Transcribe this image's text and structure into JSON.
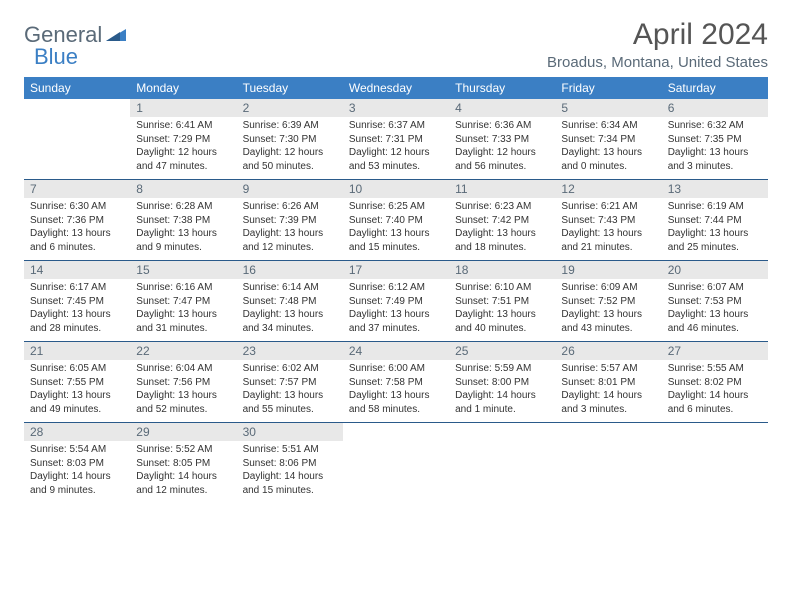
{
  "brand": {
    "part1": "General",
    "part2": "Blue"
  },
  "title": "April 2024",
  "location": "Broadus, Montana, United States",
  "colors": {
    "header_bg": "#3b7fc4",
    "header_text": "#ffffff",
    "daynum_bg": "#e8e8e8",
    "daynum_text": "#5a6a78",
    "row_divider": "#2a5a8a",
    "body_text": "#333333",
    "logo_gray": "#5a6a78",
    "logo_blue": "#3b7fc4"
  },
  "weekdays": [
    "Sunday",
    "Monday",
    "Tuesday",
    "Wednesday",
    "Thursday",
    "Friday",
    "Saturday"
  ],
  "cells": [
    [
      null,
      {
        "n": "1",
        "sr": "Sunrise: 6:41 AM",
        "ss": "Sunset: 7:29 PM",
        "d1": "Daylight: 12 hours",
        "d2": "and 47 minutes."
      },
      {
        "n": "2",
        "sr": "Sunrise: 6:39 AM",
        "ss": "Sunset: 7:30 PM",
        "d1": "Daylight: 12 hours",
        "d2": "and 50 minutes."
      },
      {
        "n": "3",
        "sr": "Sunrise: 6:37 AM",
        "ss": "Sunset: 7:31 PM",
        "d1": "Daylight: 12 hours",
        "d2": "and 53 minutes."
      },
      {
        "n": "4",
        "sr": "Sunrise: 6:36 AM",
        "ss": "Sunset: 7:33 PM",
        "d1": "Daylight: 12 hours",
        "d2": "and 56 minutes."
      },
      {
        "n": "5",
        "sr": "Sunrise: 6:34 AM",
        "ss": "Sunset: 7:34 PM",
        "d1": "Daylight: 13 hours",
        "d2": "and 0 minutes."
      },
      {
        "n": "6",
        "sr": "Sunrise: 6:32 AM",
        "ss": "Sunset: 7:35 PM",
        "d1": "Daylight: 13 hours",
        "d2": "and 3 minutes."
      }
    ],
    [
      {
        "n": "7",
        "sr": "Sunrise: 6:30 AM",
        "ss": "Sunset: 7:36 PM",
        "d1": "Daylight: 13 hours",
        "d2": "and 6 minutes."
      },
      {
        "n": "8",
        "sr": "Sunrise: 6:28 AM",
        "ss": "Sunset: 7:38 PM",
        "d1": "Daylight: 13 hours",
        "d2": "and 9 minutes."
      },
      {
        "n": "9",
        "sr": "Sunrise: 6:26 AM",
        "ss": "Sunset: 7:39 PM",
        "d1": "Daylight: 13 hours",
        "d2": "and 12 minutes."
      },
      {
        "n": "10",
        "sr": "Sunrise: 6:25 AM",
        "ss": "Sunset: 7:40 PM",
        "d1": "Daylight: 13 hours",
        "d2": "and 15 minutes."
      },
      {
        "n": "11",
        "sr": "Sunrise: 6:23 AM",
        "ss": "Sunset: 7:42 PM",
        "d1": "Daylight: 13 hours",
        "d2": "and 18 minutes."
      },
      {
        "n": "12",
        "sr": "Sunrise: 6:21 AM",
        "ss": "Sunset: 7:43 PM",
        "d1": "Daylight: 13 hours",
        "d2": "and 21 minutes."
      },
      {
        "n": "13",
        "sr": "Sunrise: 6:19 AM",
        "ss": "Sunset: 7:44 PM",
        "d1": "Daylight: 13 hours",
        "d2": "and 25 minutes."
      }
    ],
    [
      {
        "n": "14",
        "sr": "Sunrise: 6:17 AM",
        "ss": "Sunset: 7:45 PM",
        "d1": "Daylight: 13 hours",
        "d2": "and 28 minutes."
      },
      {
        "n": "15",
        "sr": "Sunrise: 6:16 AM",
        "ss": "Sunset: 7:47 PM",
        "d1": "Daylight: 13 hours",
        "d2": "and 31 minutes."
      },
      {
        "n": "16",
        "sr": "Sunrise: 6:14 AM",
        "ss": "Sunset: 7:48 PM",
        "d1": "Daylight: 13 hours",
        "d2": "and 34 minutes."
      },
      {
        "n": "17",
        "sr": "Sunrise: 6:12 AM",
        "ss": "Sunset: 7:49 PM",
        "d1": "Daylight: 13 hours",
        "d2": "and 37 minutes."
      },
      {
        "n": "18",
        "sr": "Sunrise: 6:10 AM",
        "ss": "Sunset: 7:51 PM",
        "d1": "Daylight: 13 hours",
        "d2": "and 40 minutes."
      },
      {
        "n": "19",
        "sr": "Sunrise: 6:09 AM",
        "ss": "Sunset: 7:52 PM",
        "d1": "Daylight: 13 hours",
        "d2": "and 43 minutes."
      },
      {
        "n": "20",
        "sr": "Sunrise: 6:07 AM",
        "ss": "Sunset: 7:53 PM",
        "d1": "Daylight: 13 hours",
        "d2": "and 46 minutes."
      }
    ],
    [
      {
        "n": "21",
        "sr": "Sunrise: 6:05 AM",
        "ss": "Sunset: 7:55 PM",
        "d1": "Daylight: 13 hours",
        "d2": "and 49 minutes."
      },
      {
        "n": "22",
        "sr": "Sunrise: 6:04 AM",
        "ss": "Sunset: 7:56 PM",
        "d1": "Daylight: 13 hours",
        "d2": "and 52 minutes."
      },
      {
        "n": "23",
        "sr": "Sunrise: 6:02 AM",
        "ss": "Sunset: 7:57 PM",
        "d1": "Daylight: 13 hours",
        "d2": "and 55 minutes."
      },
      {
        "n": "24",
        "sr": "Sunrise: 6:00 AM",
        "ss": "Sunset: 7:58 PM",
        "d1": "Daylight: 13 hours",
        "d2": "and 58 minutes."
      },
      {
        "n": "25",
        "sr": "Sunrise: 5:59 AM",
        "ss": "Sunset: 8:00 PM",
        "d1": "Daylight: 14 hours",
        "d2": "and 1 minute."
      },
      {
        "n": "26",
        "sr": "Sunrise: 5:57 AM",
        "ss": "Sunset: 8:01 PM",
        "d1": "Daylight: 14 hours",
        "d2": "and 3 minutes."
      },
      {
        "n": "27",
        "sr": "Sunrise: 5:55 AM",
        "ss": "Sunset: 8:02 PM",
        "d1": "Daylight: 14 hours",
        "d2": "and 6 minutes."
      }
    ],
    [
      {
        "n": "28",
        "sr": "Sunrise: 5:54 AM",
        "ss": "Sunset: 8:03 PM",
        "d1": "Daylight: 14 hours",
        "d2": "and 9 minutes."
      },
      {
        "n": "29",
        "sr": "Sunrise: 5:52 AM",
        "ss": "Sunset: 8:05 PM",
        "d1": "Daylight: 14 hours",
        "d2": "and 12 minutes."
      },
      {
        "n": "30",
        "sr": "Sunrise: 5:51 AM",
        "ss": "Sunset: 8:06 PM",
        "d1": "Daylight: 14 hours",
        "d2": "and 15 minutes."
      },
      null,
      null,
      null,
      null
    ]
  ]
}
